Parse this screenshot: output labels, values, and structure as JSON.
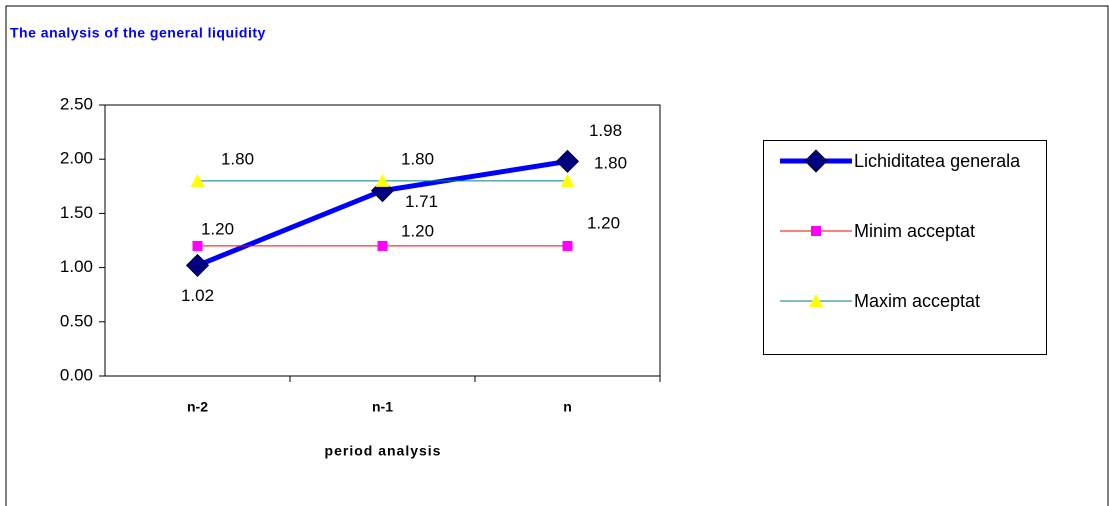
{
  "chart_data": {
    "type": "line",
    "title": "The analysis of the general liquidity",
    "x_label": "period analysis",
    "categories": [
      "n-2",
      "n-1",
      "n"
    ],
    "series": [
      {
        "name": "Lichiditatea generala",
        "color": "#0000ff",
        "marker": "diamond",
        "marker_color": "#000080",
        "values": [
          1.02,
          1.71,
          1.98
        ],
        "value_labels": [
          "1.02",
          "1.71",
          "1.98"
        ]
      },
      {
        "name": "Minim acceptat",
        "color": "#ff0000",
        "marker": "square",
        "marker_color": "#ff00ff",
        "values": [
          1.2,
          1.2,
          1.2
        ],
        "value_labels": [
          "1.20",
          "1.20",
          "1.20"
        ]
      },
      {
        "name": "Maxim acceptat",
        "color": "#008080",
        "marker": "triangle",
        "marker_color": "#ffff00",
        "values": [
          1.8,
          1.8,
          1.8
        ],
        "value_labels": [
          "1.80",
          "1.80",
          "1.80"
        ]
      }
    ],
    "ylim": [
      0,
      2.5
    ],
    "yticks": [
      {
        "value": 0,
        "label": "0.00"
      },
      {
        "value": 0.5,
        "label": "0.50"
      },
      {
        "value": 1,
        "label": "1.00"
      },
      {
        "value": 1.5,
        "label": "1.50"
      },
      {
        "value": 2,
        "label": "2.00"
      },
      {
        "value": 2.5,
        "label": "2.50"
      }
    ],
    "grid": false,
    "legend": "right"
  }
}
